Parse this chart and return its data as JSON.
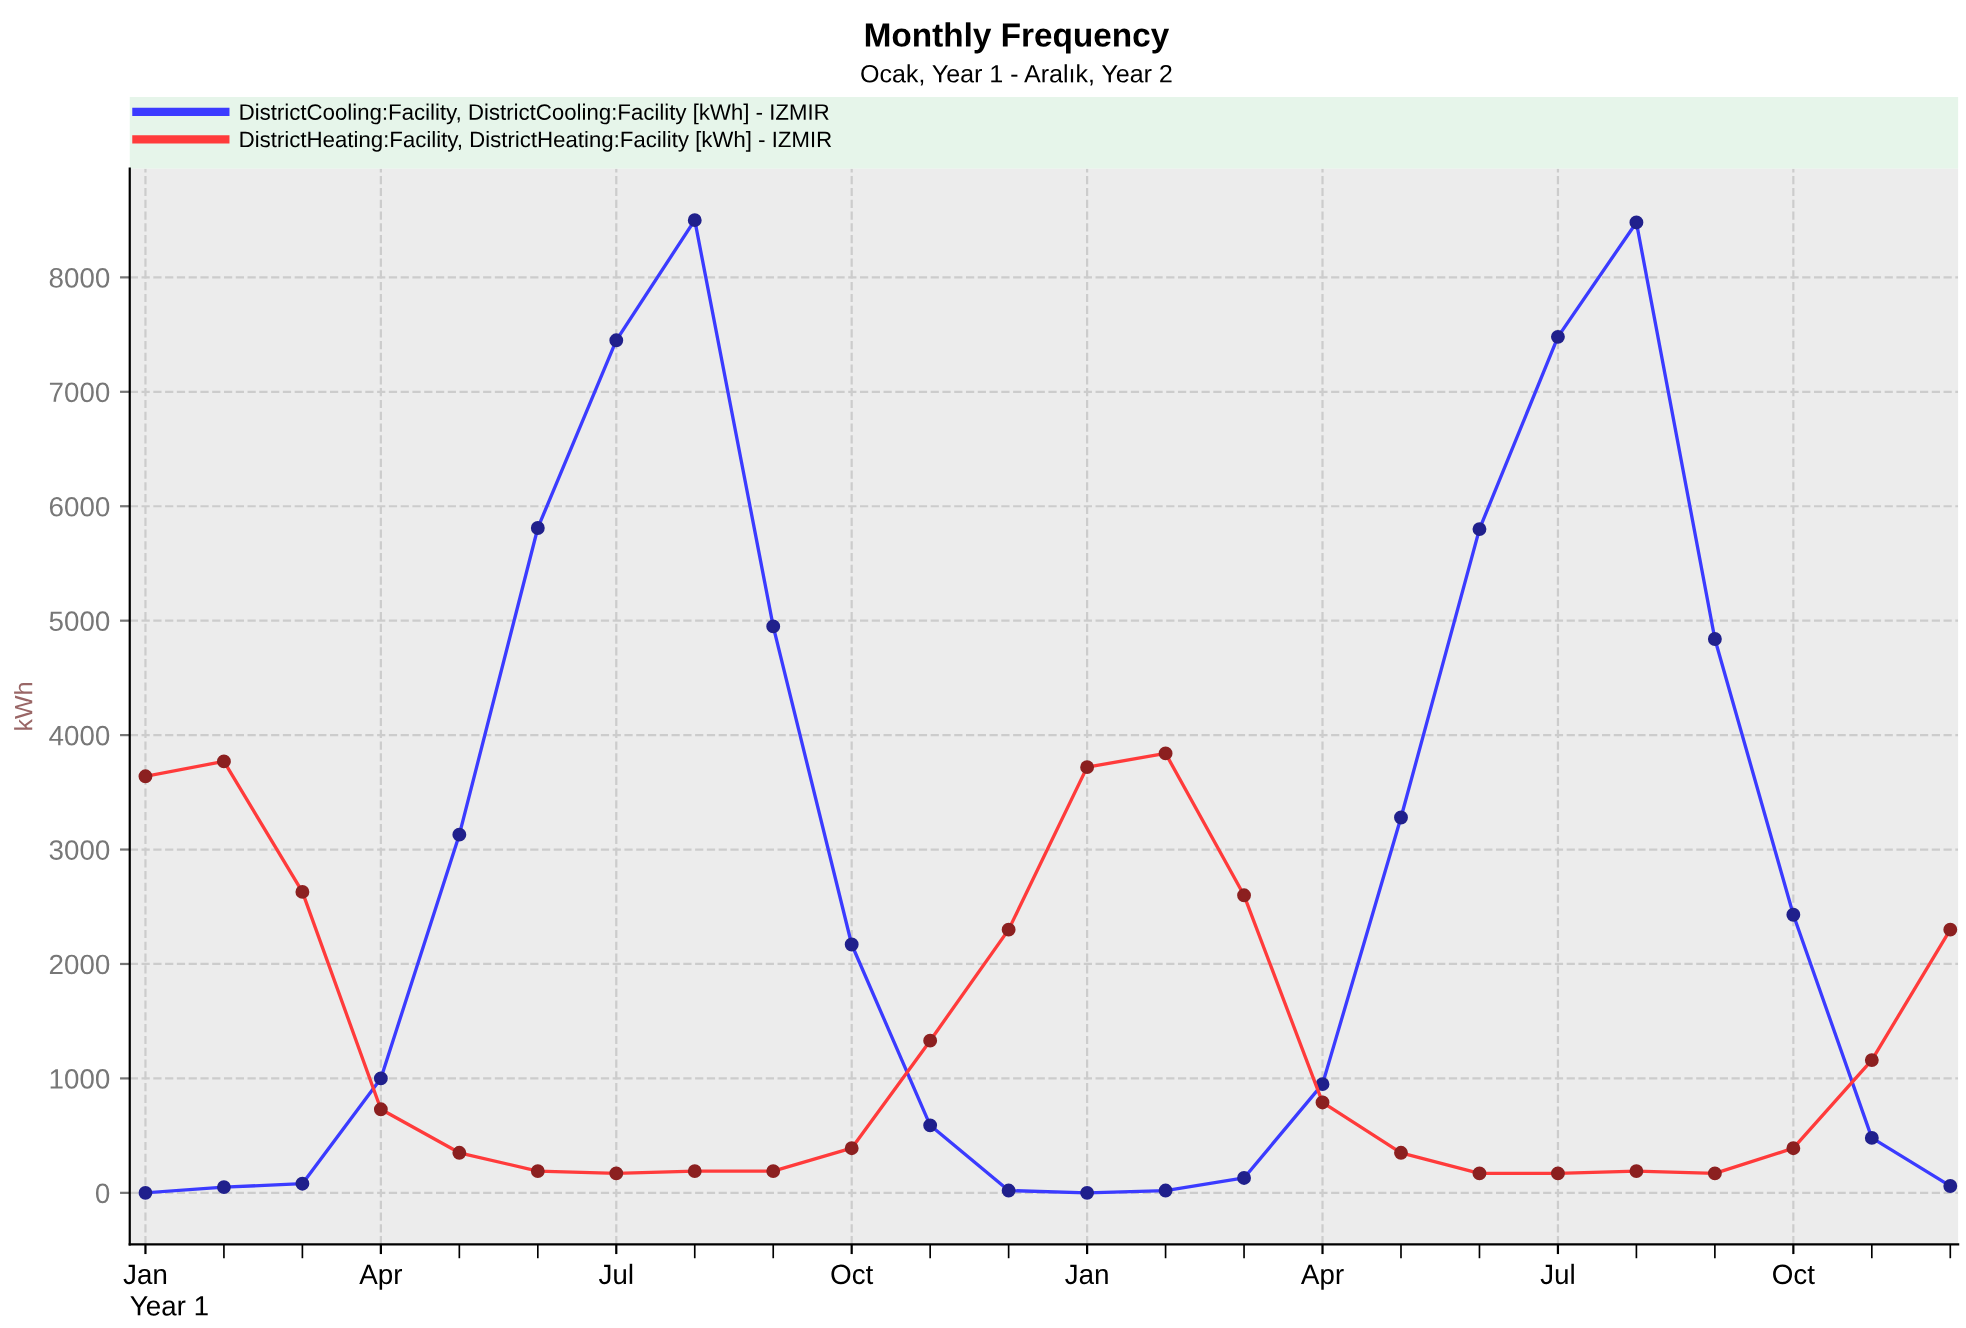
{
  "chart_data": {
    "type": "line",
    "title": "Monthly Frequency",
    "subtitle": "Ocak, Year 1 - Aralık, Year 2",
    "xlabel": "Year 1",
    "ylabel": "kWh",
    "categories": [
      "Jan",
      null,
      null,
      "Apr",
      null,
      null,
      "Jul",
      null,
      null,
      "Oct",
      null,
      null,
      "Jan",
      null,
      null,
      "Apr",
      null,
      null,
      "Jul",
      null,
      null,
      "Oct",
      null,
      null
    ],
    "series": [
      {
        "name": "DistrictCooling:Facility, DistrictCooling:Facility [kWh] - IZMIR",
        "color": "#3b3bff",
        "values": [
          0,
          50,
          80,
          1000,
          3130,
          5810,
          7450,
          8500,
          4950,
          2170,
          590,
          20,
          0,
          20,
          130,
          950,
          3280,
          5800,
          7480,
          8480,
          4840,
          2430,
          480,
          60
        ]
      },
      {
        "name": "DistrictHeating:Facility, DistrictHeating:Facility [kWh] - IZMIR",
        "color": "#ff3b3b",
        "values": [
          3640,
          3770,
          2630,
          730,
          350,
          190,
          170,
          190,
          190,
          390,
          1330,
          2300,
          3720,
          3840,
          2600,
          790,
          350,
          170,
          170,
          190,
          170,
          390,
          1160,
          2300
        ]
      }
    ],
    "ylim": [
      -450,
      8950
    ],
    "yticks": [
      0,
      1000,
      2000,
      3000,
      4000,
      5000,
      6000,
      7000,
      8000
    ],
    "grid": true,
    "legend": "top",
    "marker": "circle",
    "line_style": "solid"
  }
}
